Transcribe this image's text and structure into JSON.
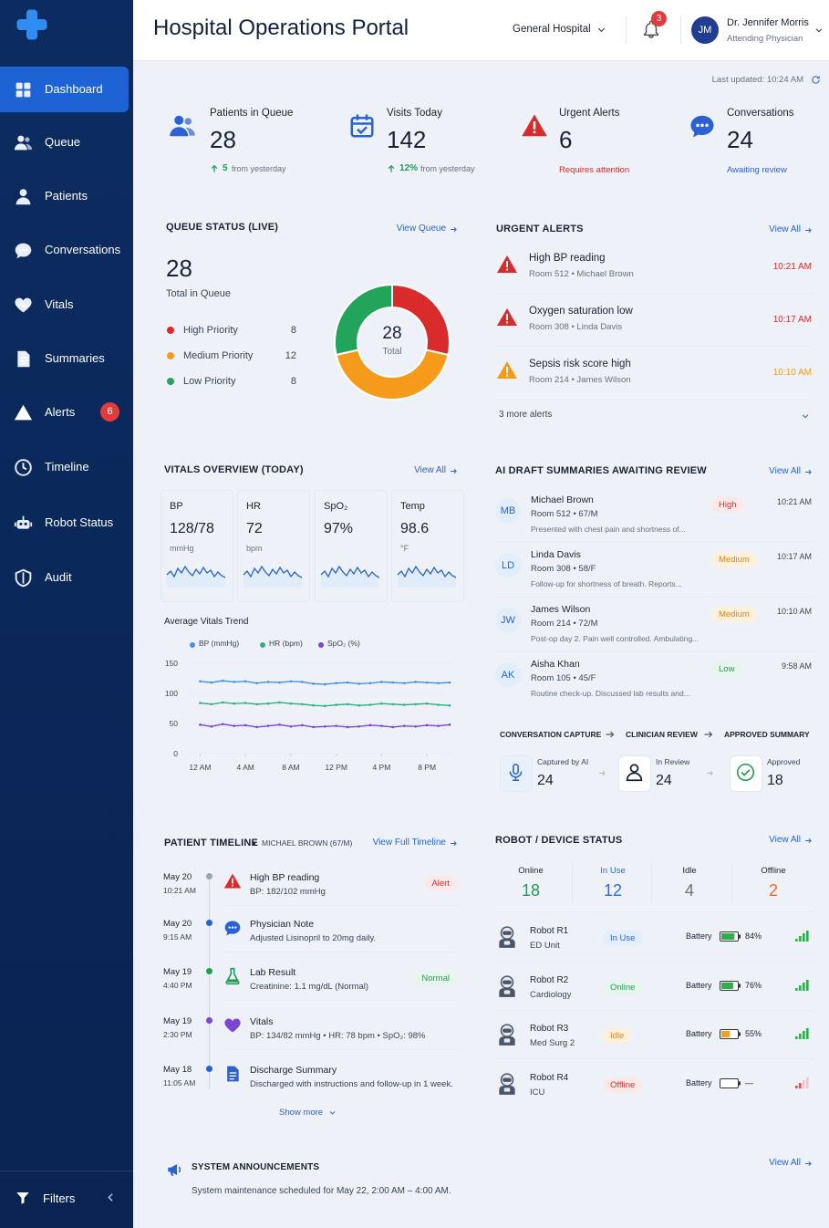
{
  "sidebar": {
    "nav": [
      {
        "label": "Dashboard"
      },
      {
        "label": "Queue"
      },
      {
        "label": "Patients"
      },
      {
        "label": "Conversations"
      },
      {
        "label": "Vitals"
      },
      {
        "label": "Summaries"
      },
      {
        "label": "Alerts",
        "badge": "6"
      },
      {
        "label": "Timeline"
      },
      {
        "label": "Robot Status"
      },
      {
        "label": "Audit"
      }
    ],
    "filters": "Filters"
  },
  "header": {
    "title": "Hospital Operations Portal",
    "hospital": "General Hospital",
    "notifications": "3",
    "user": {
      "initials": "JM",
      "name": "Dr. Jennifer Morris",
      "role": "Attending Physician"
    },
    "last_updated": "Last updated: 10:24 AM"
  },
  "kpis": [
    {
      "label": "Patients in Queue",
      "value": "28",
      "delta": "5",
      "note": "from yesterday",
      "color": "#2a62d4"
    },
    {
      "label": "Visits Today",
      "value": "142",
      "delta": "12%",
      "note": "from yesterday",
      "color": "#2a62d4"
    },
    {
      "label": "Urgent Alerts",
      "value": "6",
      "note": "Requires attention",
      "color": "#d92b2b"
    },
    {
      "label": "Conversations",
      "value": "24",
      "note": "Awaiting review",
      "color": "#2a62d4"
    }
  ],
  "queue": {
    "title": "QUEUE STATUS (LIVE)",
    "link": "View Queue",
    "total": "28",
    "total_label": "Total in Queue",
    "center_value": "28",
    "center_label": "Total"
  },
  "alerts": {
    "title": "URGENT ALERTS",
    "link": "View All",
    "items": [
      {
        "title": "High BP reading",
        "sub": "Room 512 • Michael Brown",
        "time": "10:21 AM",
        "color": "#d92b2b"
      },
      {
        "title": "Oxygen saturation low",
        "sub": "Room 308 • Linda Davis",
        "time": "10:17 AM",
        "color": "#d92b2b"
      },
      {
        "title": "Sepsis risk score high",
        "sub": "Room 214 • James Wilson",
        "time": "10:10 AM",
        "color": "#f59a1b"
      }
    ],
    "more": "3 more alerts"
  },
  "vitals": {
    "title": "VITALS OVERVIEW (TODAY)",
    "link": "View All",
    "tiles": [
      {
        "label": "BP",
        "value": "128/78",
        "unit": "mmHg"
      },
      {
        "label": "HR",
        "value": "72",
        "unit": "bpm"
      },
      {
        "label": "SpO₂",
        "value": "97%"
      },
      {
        "label": "Temp",
        "value": "98.6",
        "unit": "°F"
      }
    ]
  },
  "summaries": {
    "title": "AI DRAFT SUMMARIES AWAITING REVIEW",
    "link": "View All",
    "items": [
      {
        "initials": "MB",
        "name": "Michael Brown",
        "sub": "Room 512 • 67/M",
        "note": "Presented with chest pain and shortness of...",
        "priority": "High",
        "color": "#d63030",
        "bg": "#fde8e8",
        "time": "10:21 AM"
      },
      {
        "initials": "LD",
        "name": "Linda Davis",
        "sub": "Room 308 • 58/F",
        "note": "Follow-up for shortness of breath. Reports...",
        "priority": "Medium",
        "color": "#e0841a",
        "bg": "#fdf0dc",
        "time": "10:17 AM"
      },
      {
        "initials": "JW",
        "name": "James Wilson",
        "sub": "Room 214 • 72/M",
        "note": "Post-op day 2. Pain well controlled. Ambulating...",
        "priority": "Medium",
        "color": "#e0841a",
        "bg": "#fdf0dc",
        "time": "10:10 AM"
      },
      {
        "initials": "AK",
        "name": "Aisha Khan",
        "sub": "Room 105 • 45/F",
        "note": "Routine check-up. Discussed lab results and...",
        "priority": "Low",
        "color": "#249b54",
        "bg": "#e6f6ec",
        "time": "9:58 AM"
      }
    ],
    "workflow": {
      "steps": [
        "CONVERSATION CAPTURE",
        "CLINICIAN REVIEW",
        "APPROVED SUMMARY"
      ],
      "items": [
        {
          "label": "Captured by AI",
          "value": "24"
        },
        {
          "label": "In Review",
          "value": "24"
        },
        {
          "label": "Approved",
          "value": "18"
        }
      ]
    }
  },
  "timeline": {
    "title": "PATIENT TIMELINE",
    "patient": "MICHAEL BROWN (67/M)",
    "link": "View Full Timeline",
    "events": [
      {
        "date": "May 20",
        "time": "10:21 AM",
        "title": "High BP reading",
        "detail": "BP: 182/102 mmHg",
        "tag": "Alert",
        "color": "#d92b2b",
        "tag_bg": "#fde8e8"
      },
      {
        "date": "May 20",
        "time": "9:15 AM",
        "title": "Physician Note",
        "detail": "Adjusted Lisinopril to 20mg daily.",
        "color": "#2a62d4"
      },
      {
        "date": "May 19",
        "time": "4:40 PM",
        "title": "Lab Result",
        "detail": "Creatinine: 1.1 mg/dL (Normal)",
        "tag": "Normal",
        "color": "#249b54",
        "tag_bg": "#e6f6ec"
      },
      {
        "date": "May 19",
        "time": "2:30 PM",
        "title": "Vitals",
        "detail": "BP: 134/82 mmHg • HR: 78 bpm • SpO₂: 98%",
        "color": "#7b45d6"
      },
      {
        "date": "May 18",
        "time": "11:05 AM",
        "title": "Discharge Summary",
        "detail": "Discharged with instructions and follow-up in 1 week.",
        "color": "#2a62d4"
      }
    ],
    "more": "Show more"
  },
  "robots": {
    "title": "ROBOT / DEVICE STATUS",
    "link": "View All",
    "stats": [
      {
        "label": "Online",
        "value": "18",
        "color": "#1f9d55"
      },
      {
        "label": "In Use",
        "value": "12",
        "color": "#2a6bd8"
      },
      {
        "label": "Idle",
        "value": "4",
        "color": "#6b7280"
      },
      {
        "label": "Offline",
        "value": "2",
        "color": "#ee6a20"
      }
    ],
    "battery_label": "Battery",
    "items": [
      {
        "name": "Robot R1",
        "location": "ED Unit",
        "status": "In Use",
        "color": "#2a6bd8",
        "bg": "#e3eefc",
        "battery": "84%",
        "battery_color": "#2fae4e",
        "signal_color": "#2fae4e"
      },
      {
        "name": "Robot R2",
        "location": "Cardiology",
        "status": "Online",
        "color": "#1f9d55",
        "bg": "#e6f6ec",
        "battery": "76%",
        "battery_color": "#2fae4e",
        "signal_color": "#2fae4e"
      },
      {
        "name": "Robot R3",
        "location": "Med Surg 2",
        "status": "Idle",
        "color": "#e0841a",
        "bg": "#fdf0dc",
        "battery": "55%",
        "battery_color": "#f0a020",
        "signal_color": "#2fae4e"
      },
      {
        "name": "Robot R4",
        "location": "ICU",
        "status": "Offline",
        "color": "#d63030",
        "bg": "#fde8e8",
        "battery": "—",
        "battery_color": "#cccccc",
        "signal_color": "#e05050"
      }
    ]
  },
  "announcements": {
    "title": "SYSTEM ANNOUNCEMENTS",
    "text": "System maintenance scheduled for May 22, 2:00 AM – 4:00 AM.",
    "link": "View All"
  },
  "chart_data": [
    {
      "type": "donut",
      "categories": [
        "High Priority",
        "Medium Priority",
        "Low Priority"
      ],
      "values": [
        8,
        12,
        8
      ],
      "colors": [
        "#d92b2b",
        "#f59a1b",
        "#22a55b"
      ]
    },
    {
      "type": "line",
      "title": "Average Vitals Trend",
      "x": [
        0,
        1,
        2,
        3,
        4,
        5,
        6,
        7,
        8,
        9,
        10,
        11,
        12,
        13,
        14,
        15,
        16,
        17,
        18,
        19,
        20,
        21,
        22
      ],
      "xlim": [
        -1,
        22
      ],
      "xticks": [
        {
          "value": 0,
          "label": "12 AM"
        },
        {
          "value": 4,
          "label": "4 AM"
        },
        {
          "value": 8,
          "label": "8 AM"
        },
        {
          "value": 12,
          "label": "12 PM"
        },
        {
          "value": 16,
          "label": "4 PM"
        },
        {
          "value": 20,
          "label": "8 PM"
        }
      ],
      "ylim": [
        0,
        150
      ],
      "yticks": [
        0,
        50,
        100,
        150
      ],
      "grid": true,
      "series": [
        {
          "name": "BP (mmHg)",
          "color": "#4a8fe0",
          "values": [
            120,
            118,
            121,
            119,
            120,
            117,
            119,
            118,
            120,
            119,
            116,
            115,
            117,
            118,
            116,
            117,
            119,
            118,
            117,
            119,
            118,
            117,
            118
          ]
        },
        {
          "name": "HR (bpm)",
          "color": "#2db37a",
          "values": [
            84,
            82,
            85,
            83,
            84,
            82,
            83,
            85,
            83,
            82,
            80,
            79,
            81,
            82,
            80,
            81,
            83,
            82,
            81,
            82,
            83,
            81,
            80
          ]
        },
        {
          "name": "SpO₂ (%)",
          "color": "#7b45d6",
          "values": [
            48,
            45,
            49,
            46,
            47,
            44,
            46,
            48,
            45,
            47,
            44,
            45,
            46,
            44,
            45,
            47,
            46,
            44,
            46,
            45,
            47,
            46,
            48
          ]
        }
      ]
    }
  ]
}
